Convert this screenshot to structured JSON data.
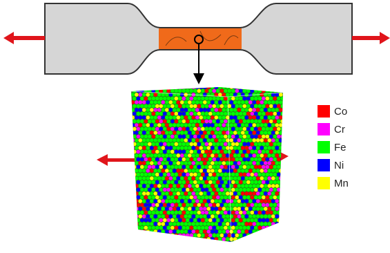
{
  "legend": [
    {
      "label": "Co",
      "color": "#ff0000"
    },
    {
      "label": "Cr",
      "color": "#ff00ff"
    },
    {
      "label": "Fe",
      "color": "#00ff00"
    },
    {
      "label": "Ni",
      "color": "#0000ff"
    },
    {
      "label": "Mn",
      "color": "#ffff00"
    }
  ]
}
